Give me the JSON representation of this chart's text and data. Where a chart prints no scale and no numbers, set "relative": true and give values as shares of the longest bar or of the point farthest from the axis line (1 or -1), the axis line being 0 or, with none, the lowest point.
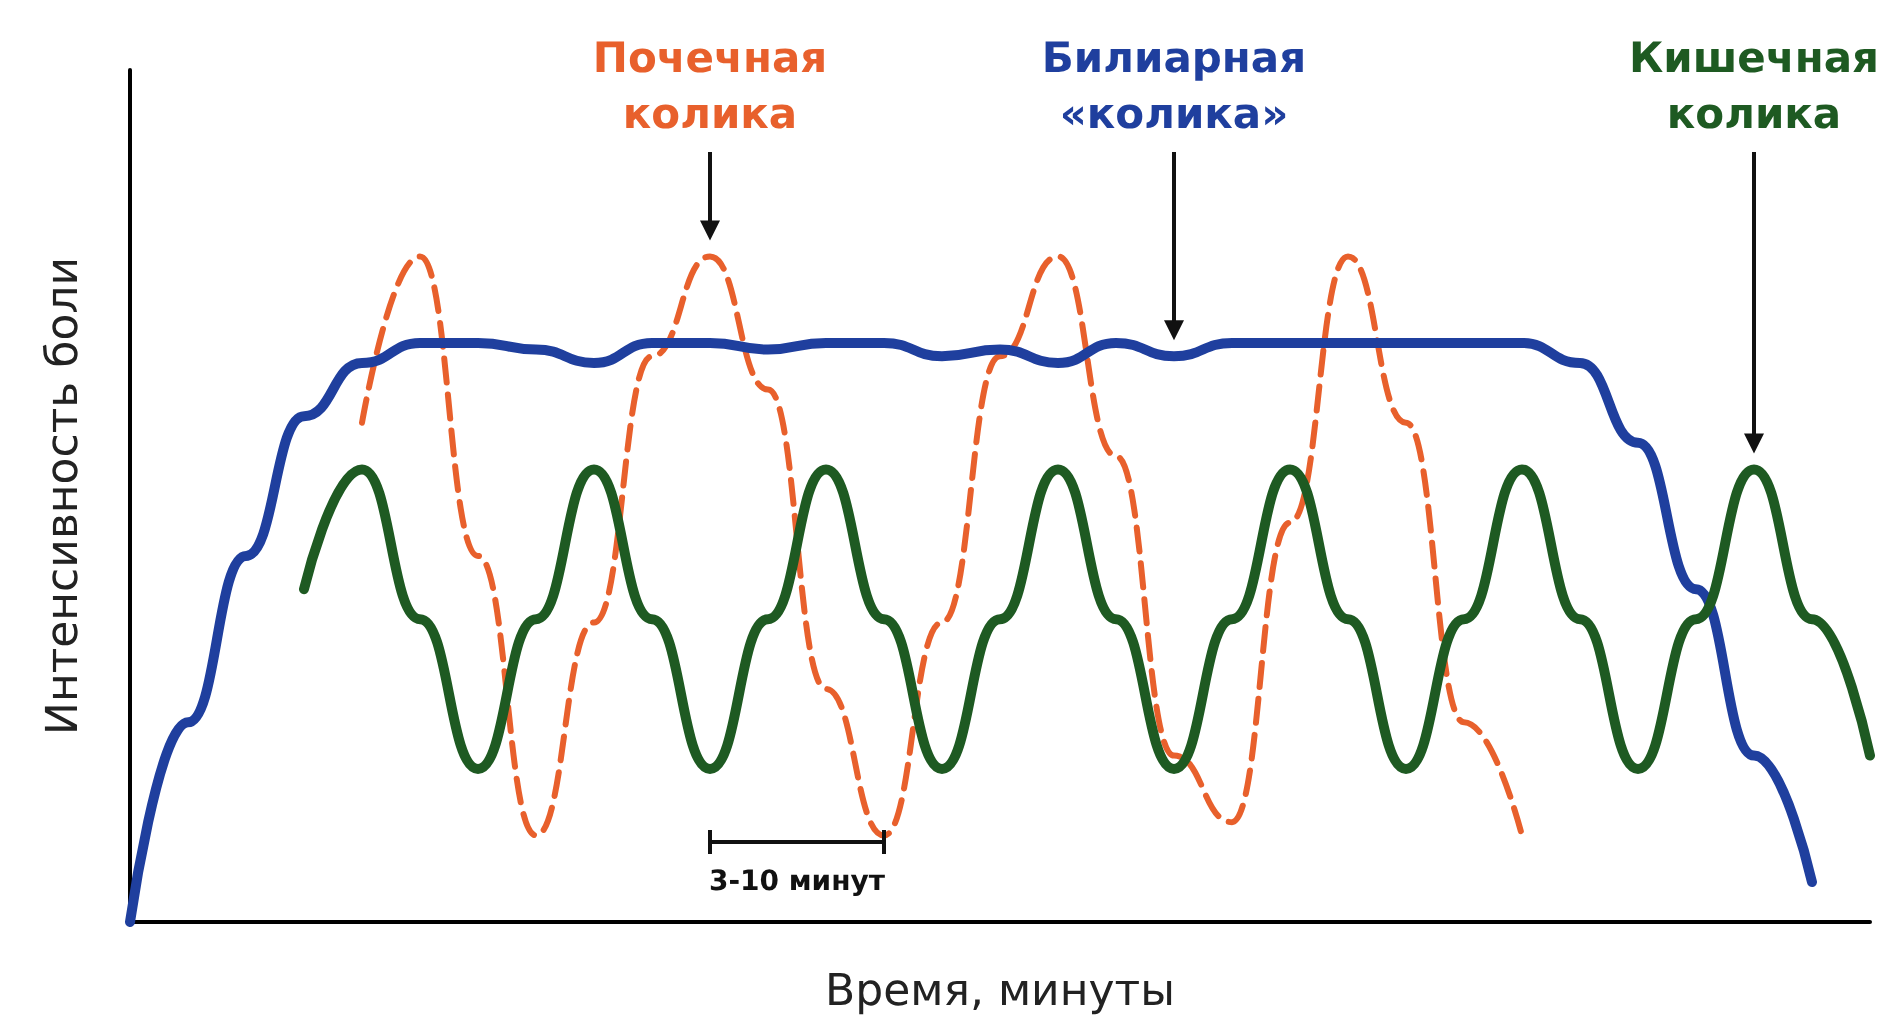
{
  "chart_data": {
    "type": "line",
    "xlabel": "Время, минуты",
    "ylabel": "Интенсивность боли",
    "relative": true,
    "marker": "none",
    "categories": [
      null,
      null,
      null,
      null,
      null,
      null,
      null,
      null,
      null,
      null,
      null,
      null,
      null,
      null,
      null,
      null,
      null,
      null,
      null,
      null,
      null,
      null,
      null,
      null,
      null,
      null,
      null,
      null,
      null,
      null,
      null
    ],
    "series": [
      {
        "name": "Почечная колика",
        "color": "#e8602c",
        "line_style": "dashed",
        "values": [
          null,
          null,
          null,
          null,
          0.75,
          1.0,
          0.55,
          0.13,
          0.45,
          0.85,
          1.0,
          0.8,
          0.35,
          0.13,
          0.45,
          0.85,
          1.0,
          0.7,
          0.25,
          0.15,
          0.6,
          1.0,
          0.75,
          0.3,
          0.13,
          null,
          null,
          null,
          null,
          null,
          null
        ]
      },
      {
        "name": "Билиарная «колика»",
        "color": "#1f3f9e",
        "line_style": "solid",
        "values": [
          0,
          0.3,
          0.55,
          0.76,
          0.84,
          0.87,
          0.87,
          0.86,
          0.84,
          0.87,
          0.87,
          0.86,
          0.87,
          0.87,
          0.85,
          0.86,
          0.84,
          0.87,
          0.85,
          0.87,
          0.87,
          0.87,
          0.87,
          0.87,
          0.87,
          0.84,
          0.72,
          0.5,
          0.25,
          0.06,
          null
        ]
      },
      {
        "name": "Кишечная колика",
        "color": "#1e5a22",
        "line_style": "solid",
        "values": [
          null,
          null,
          null,
          0.5,
          0.68,
          0.455,
          0.23,
          0.455,
          0.68,
          0.455,
          0.23,
          0.455,
          0.68,
          0.455,
          0.23,
          0.455,
          0.68,
          0.455,
          0.23,
          0.455,
          0.68,
          0.455,
          0.23,
          0.455,
          0.68,
          0.455,
          0.23,
          0.455,
          0.68,
          0.455,
          0.25
        ]
      }
    ],
    "annotations": [
      "3-10 минут"
    ]
  }
}
